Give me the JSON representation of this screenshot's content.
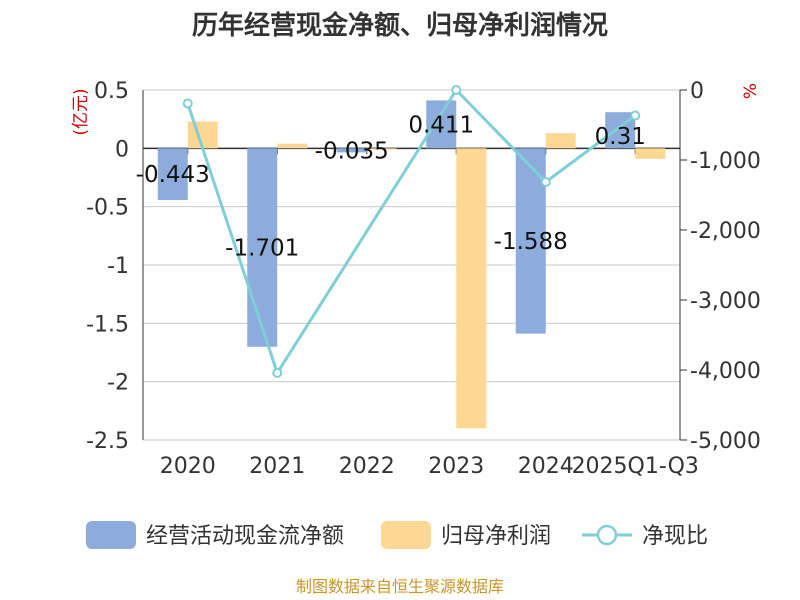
{
  "chart_data": {
    "type": "bar",
    "title": "历年经营现金净额、归母净利润情况",
    "categories": [
      "2020",
      "2021",
      "2022",
      "2023",
      "2024",
      "2025Q1-Q3"
    ],
    "series": [
      {
        "name": "经营活动现金流净额",
        "type": "bar",
        "axis": "left",
        "color": "#8eacdb",
        "values": [
          -0.443,
          -1.701,
          -0.035,
          0.411,
          -1.588,
          0.31
        ],
        "labels": [
          "-0.443",
          "-1.701",
          "-0.035",
          "0.411",
          "-1.588",
          "0.31"
        ]
      },
      {
        "name": "归母净利润",
        "type": "bar",
        "axis": "left",
        "color": "#fdd895",
        "values": [
          0.23,
          0.04,
          -0.01,
          -2.4,
          0.13,
          -0.09
        ]
      },
      {
        "name": "净现比",
        "type": "line",
        "axis": "right",
        "color": "#7ecfd6",
        "values": [
          -193,
          -4041,
          null,
          0,
          -1314,
          -364
        ]
      }
    ],
    "y_left": {
      "unit": "(亿元)",
      "min": -2.5,
      "max": 0.5,
      "ticks": [
        0.5,
        0,
        -0.5,
        -1,
        -1.5,
        -2,
        -2.5
      ],
      "tick_labels": [
        "0.5",
        "0",
        "-0.5",
        "-1",
        "-1.5",
        "-2",
        "-2.5"
      ]
    },
    "y_right": {
      "unit": "%",
      "min": -5000,
      "max": 0,
      "ticks": [
        0,
        -1000,
        -2000,
        -3000,
        -4000,
        -5000
      ],
      "tick_labels": [
        "0",
        "-1,000",
        "-2,000",
        "-3,000",
        "-4,000",
        "-5,000"
      ]
    },
    "legend_position": "bottom",
    "source": "制图数据来自恒生聚源数据库"
  }
}
